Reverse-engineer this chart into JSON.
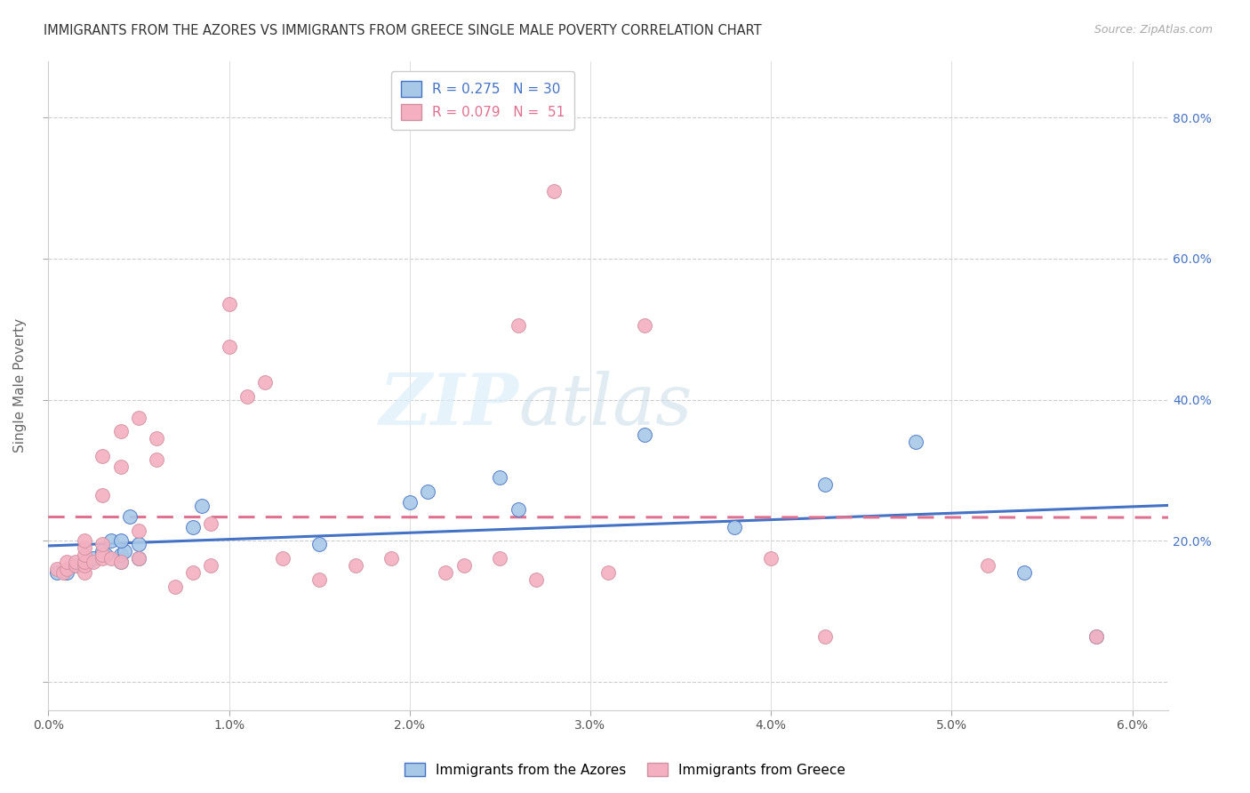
{
  "title": "IMMIGRANTS FROM THE AZORES VS IMMIGRANTS FROM GREECE SINGLE MALE POVERTY CORRELATION CHART",
  "source": "Source: ZipAtlas.com",
  "ylabel": "Single Male Poverty",
  "y_ticks": [
    0.0,
    0.2,
    0.4,
    0.6,
    0.8
  ],
  "y_tick_labels": [
    "",
    "20.0%",
    "40.0%",
    "60.0%",
    "80.0%"
  ],
  "x_ticks": [
    0.0,
    0.01,
    0.02,
    0.03,
    0.04,
    0.05,
    0.06
  ],
  "x_tick_labels": [
    "0.0%",
    "1.0%",
    "2.0%",
    "3.0%",
    "4.0%",
    "5.0%",
    "6.0%"
  ],
  "x_range": [
    0.0,
    0.062
  ],
  "y_range": [
    -0.04,
    0.88
  ],
  "color_azores": "#a8c8e8",
  "color_greece": "#f4b0c0",
  "color_azores_line": "#4472c4",
  "color_greece_line": "#e07090",
  "legend_label_azores": "Immigrants from the Azores",
  "legend_label_greece": "Immigrants from Greece",
  "azores_x": [
    0.0005,
    0.001,
    0.0015,
    0.002,
    0.0022,
    0.0025,
    0.003,
    0.003,
    0.0032,
    0.0035,
    0.004,
    0.004,
    0.0042,
    0.004,
    0.0045,
    0.005,
    0.005,
    0.008,
    0.0085,
    0.015,
    0.02,
    0.021,
    0.026,
    0.025,
    0.033,
    0.038,
    0.043,
    0.048,
    0.054,
    0.058
  ],
  "azores_y": [
    0.155,
    0.155,
    0.165,
    0.17,
    0.17,
    0.175,
    0.18,
    0.185,
    0.18,
    0.2,
    0.17,
    0.18,
    0.185,
    0.2,
    0.235,
    0.175,
    0.195,
    0.22,
    0.25,
    0.195,
    0.255,
    0.27,
    0.245,
    0.29,
    0.35,
    0.22,
    0.28,
    0.34,
    0.155,
    0.065
  ],
  "greece_x": [
    0.0005,
    0.0008,
    0.001,
    0.001,
    0.0015,
    0.0015,
    0.002,
    0.002,
    0.002,
    0.002,
    0.002,
    0.002,
    0.0025,
    0.003,
    0.003,
    0.003,
    0.003,
    0.003,
    0.0035,
    0.004,
    0.004,
    0.004,
    0.005,
    0.005,
    0.005,
    0.006,
    0.006,
    0.007,
    0.008,
    0.009,
    0.009,
    0.01,
    0.01,
    0.011,
    0.012,
    0.013,
    0.015,
    0.017,
    0.019,
    0.022,
    0.023,
    0.025,
    0.026,
    0.027,
    0.028,
    0.031,
    0.033,
    0.04,
    0.043,
    0.052,
    0.058
  ],
  "greece_y": [
    0.16,
    0.155,
    0.16,
    0.17,
    0.165,
    0.17,
    0.155,
    0.165,
    0.17,
    0.18,
    0.19,
    0.2,
    0.17,
    0.175,
    0.18,
    0.195,
    0.265,
    0.32,
    0.175,
    0.17,
    0.305,
    0.355,
    0.175,
    0.215,
    0.375,
    0.315,
    0.345,
    0.135,
    0.155,
    0.165,
    0.225,
    0.475,
    0.535,
    0.405,
    0.425,
    0.175,
    0.145,
    0.165,
    0.175,
    0.155,
    0.165,
    0.175,
    0.505,
    0.145,
    0.695,
    0.155,
    0.505,
    0.175,
    0.065,
    0.165,
    0.065
  ]
}
